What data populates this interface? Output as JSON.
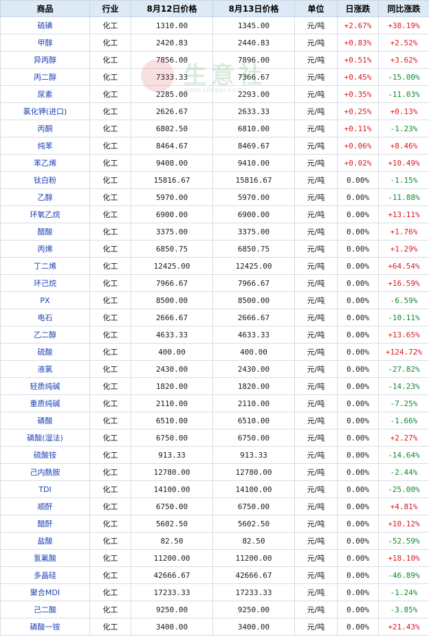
{
  "headers": {
    "name": "商品",
    "industry": "行业",
    "price_aug12": "8月12日价格",
    "price_aug13": "8月13日价格",
    "unit": "单位",
    "daily_change": "日涨跌",
    "yoy_change": "同比涨跌"
  },
  "watermark": {
    "text": "生意社",
    "url": "www.100ppi.com"
  },
  "colors": {
    "header_bg": "#dde9f5",
    "name_text": "#1a3fb5",
    "up": "#e0141e",
    "down": "#0a8a2a",
    "border": "#d6dde6"
  },
  "rows": [
    {
      "name": "硫磺",
      "industry": "化工",
      "p1": "1310.00",
      "p2": "1345.00",
      "unit": "元/吨",
      "day": "+2.67%",
      "yoy": "+38.19%"
    },
    {
      "name": "甲醇",
      "industry": "化工",
      "p1": "2420.83",
      "p2": "2440.83",
      "unit": "元/吨",
      "day": "+0.83%",
      "yoy": "+2.52%"
    },
    {
      "name": "异丙醇",
      "industry": "化工",
      "p1": "7856.00",
      "p2": "7896.00",
      "unit": "元/吨",
      "day": "+0.51%",
      "yoy": "+3.62%"
    },
    {
      "name": "丙二醇",
      "industry": "化工",
      "p1": "7333.33",
      "p2": "7366.67",
      "unit": "元/吨",
      "day": "+0.45%",
      "yoy": "-15.00%"
    },
    {
      "name": "尿素",
      "industry": "化工",
      "p1": "2285.00",
      "p2": "2293.00",
      "unit": "元/吨",
      "day": "+0.35%",
      "yoy": "-11.03%"
    },
    {
      "name": "氯化钾(进口)",
      "industry": "化工",
      "p1": "2626.67",
      "p2": "2633.33",
      "unit": "元/吨",
      "day": "+0.25%",
      "yoy": "+0.13%"
    },
    {
      "name": "丙酮",
      "industry": "化工",
      "p1": "6802.50",
      "p2": "6810.00",
      "unit": "元/吨",
      "day": "+0.11%",
      "yoy": "-1.23%"
    },
    {
      "name": "纯苯",
      "industry": "化工",
      "p1": "8464.67",
      "p2": "8469.67",
      "unit": "元/吨",
      "day": "+0.06%",
      "yoy": "+8.46%"
    },
    {
      "name": "苯乙烯",
      "industry": "化工",
      "p1": "9408.00",
      "p2": "9410.00",
      "unit": "元/吨",
      "day": "+0.02%",
      "yoy": "+10.49%"
    },
    {
      "name": "钛白粉",
      "industry": "化工",
      "p1": "15816.67",
      "p2": "15816.67",
      "unit": "元/吨",
      "day": "0.00%",
      "yoy": "-1.15%"
    },
    {
      "name": "乙醇",
      "industry": "化工",
      "p1": "5970.00",
      "p2": "5970.00",
      "unit": "元/吨",
      "day": "0.00%",
      "yoy": "-11.88%"
    },
    {
      "name": "环氧乙烷",
      "industry": "化工",
      "p1": "6900.00",
      "p2": "6900.00",
      "unit": "元/吨",
      "day": "0.00%",
      "yoy": "+13.11%"
    },
    {
      "name": "醋酸",
      "industry": "化工",
      "p1": "3375.00",
      "p2": "3375.00",
      "unit": "元/吨",
      "day": "0.00%",
      "yoy": "+1.76%"
    },
    {
      "name": "丙烯",
      "industry": "化工",
      "p1": "6850.75",
      "p2": "6850.75",
      "unit": "元/吨",
      "day": "0.00%",
      "yoy": "+1.29%"
    },
    {
      "name": "丁二烯",
      "industry": "化工",
      "p1": "12425.00",
      "p2": "12425.00",
      "unit": "元/吨",
      "day": "0.00%",
      "yoy": "+64.54%"
    },
    {
      "name": "环己烷",
      "industry": "化工",
      "p1": "7966.67",
      "p2": "7966.67",
      "unit": "元/吨",
      "day": "0.00%",
      "yoy": "+16.59%"
    },
    {
      "name": "PX",
      "industry": "化工",
      "p1": "8500.00",
      "p2": "8500.00",
      "unit": "元/吨",
      "day": "0.00%",
      "yoy": "-6.59%"
    },
    {
      "name": "电石",
      "industry": "化工",
      "p1": "2666.67",
      "p2": "2666.67",
      "unit": "元/吨",
      "day": "0.00%",
      "yoy": "-10.11%"
    },
    {
      "name": "乙二醇",
      "industry": "化工",
      "p1": "4633.33",
      "p2": "4633.33",
      "unit": "元/吨",
      "day": "0.00%",
      "yoy": "+13.65%"
    },
    {
      "name": "硫酸",
      "industry": "化工",
      "p1": "400.00",
      "p2": "400.00",
      "unit": "元/吨",
      "day": "0.00%",
      "yoy": "+124.72%"
    },
    {
      "name": "液氯",
      "industry": "化工",
      "p1": "2430.00",
      "p2": "2430.00",
      "unit": "元/吨",
      "day": "0.00%",
      "yoy": "-27.82%"
    },
    {
      "name": "轻质纯碱",
      "industry": "化工",
      "p1": "1820.00",
      "p2": "1820.00",
      "unit": "元/吨",
      "day": "0.00%",
      "yoy": "-14.23%"
    },
    {
      "name": "重质纯碱",
      "industry": "化工",
      "p1": "2110.00",
      "p2": "2110.00",
      "unit": "元/吨",
      "day": "0.00%",
      "yoy": "-7.25%"
    },
    {
      "name": "磷酸",
      "industry": "化工",
      "p1": "6510.00",
      "p2": "6510.00",
      "unit": "元/吨",
      "day": "0.00%",
      "yoy": "-1.66%"
    },
    {
      "name": "磷酸(湿法)",
      "industry": "化工",
      "p1": "6750.00",
      "p2": "6750.00",
      "unit": "元/吨",
      "day": "0.00%",
      "yoy": "+2.27%"
    },
    {
      "name": "硫酸铵",
      "industry": "化工",
      "p1": "913.33",
      "p2": "913.33",
      "unit": "元/吨",
      "day": "0.00%",
      "yoy": "-14.64%"
    },
    {
      "name": "己内酰胺",
      "industry": "化工",
      "p1": "12780.00",
      "p2": "12780.00",
      "unit": "元/吨",
      "day": "0.00%",
      "yoy": "-2.44%"
    },
    {
      "name": "TDI",
      "industry": "化工",
      "p1": "14100.00",
      "p2": "14100.00",
      "unit": "元/吨",
      "day": "0.00%",
      "yoy": "-25.00%"
    },
    {
      "name": "顺酐",
      "industry": "化工",
      "p1": "6750.00",
      "p2": "6750.00",
      "unit": "元/吨",
      "day": "0.00%",
      "yoy": "+4.81%"
    },
    {
      "name": "醋酐",
      "industry": "化工",
      "p1": "5602.50",
      "p2": "5602.50",
      "unit": "元/吨",
      "day": "0.00%",
      "yoy": "+10.12%"
    },
    {
      "name": "盐酸",
      "industry": "化工",
      "p1": "82.50",
      "p2": "82.50",
      "unit": "元/吨",
      "day": "0.00%",
      "yoy": "-52.59%"
    },
    {
      "name": "氢氟酸",
      "industry": "化工",
      "p1": "11200.00",
      "p2": "11200.00",
      "unit": "元/吨",
      "day": "0.00%",
      "yoy": "+18.10%"
    },
    {
      "name": "多晶硅",
      "industry": "化工",
      "p1": "42666.67",
      "p2": "42666.67",
      "unit": "元/吨",
      "day": "0.00%",
      "yoy": "-46.89%"
    },
    {
      "name": "聚合MDI",
      "industry": "化工",
      "p1": "17233.33",
      "p2": "17233.33",
      "unit": "元/吨",
      "day": "0.00%",
      "yoy": "-1.24%"
    },
    {
      "name": "己二酸",
      "industry": "化工",
      "p1": "9250.00",
      "p2": "9250.00",
      "unit": "元/吨",
      "day": "0.00%",
      "yoy": "-3.85%"
    },
    {
      "name": "磷酸一铵",
      "industry": "化工",
      "p1": "3400.00",
      "p2": "3400.00",
      "unit": "元/吨",
      "day": "0.00%",
      "yoy": "+21.43%"
    }
  ]
}
